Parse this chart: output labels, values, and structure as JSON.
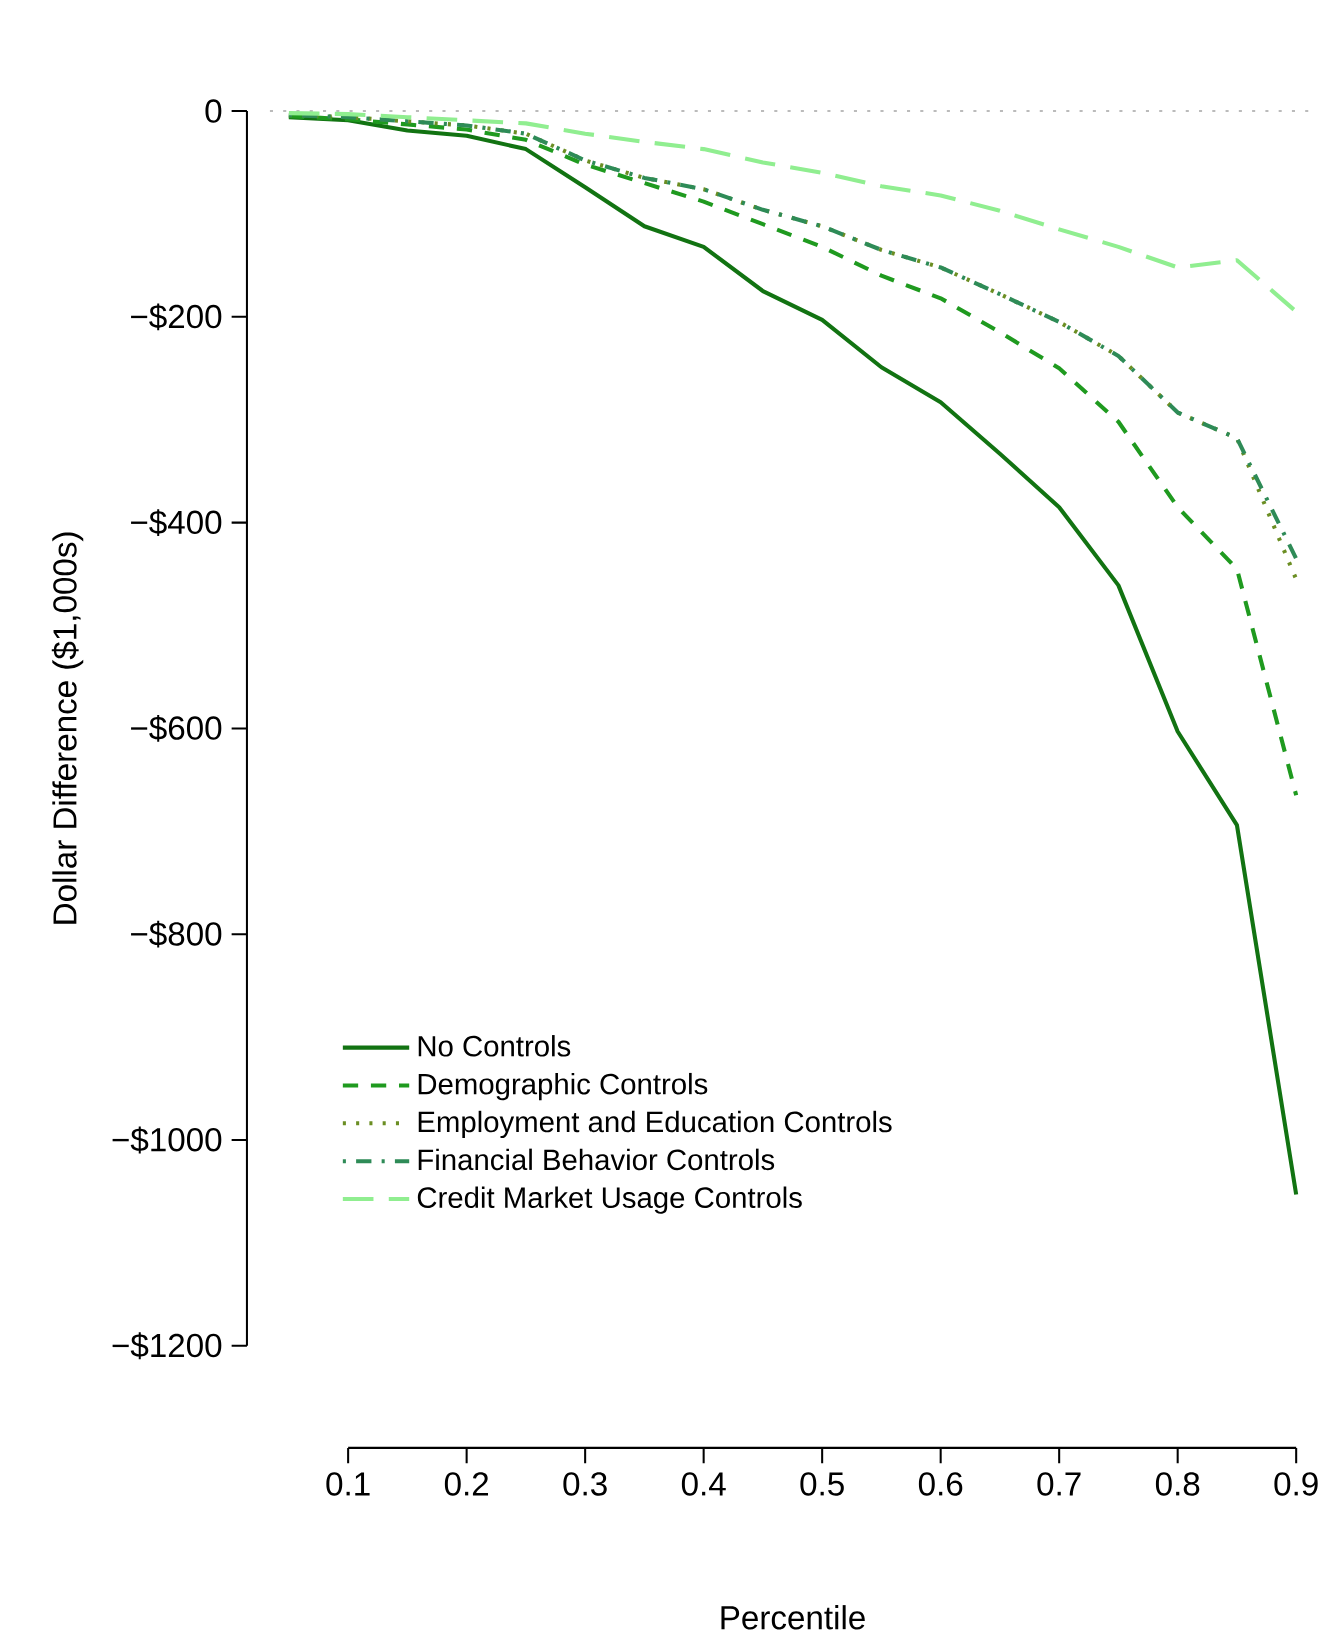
{
  "chart_data": {
    "type": "line",
    "xlabel": "Percentile",
    "ylabel": "Dollar Difference ($1,000s)",
    "x": [
      0.05,
      0.1,
      0.15,
      0.2,
      0.25,
      0.3,
      0.35,
      0.4,
      0.45,
      0.5,
      0.55,
      0.6,
      0.65,
      0.7,
      0.75,
      0.8,
      0.85,
      0.9
    ],
    "series": [
      {
        "name": "No Controls",
        "color": "#127312",
        "line_style": "solid",
        "values": [
          -6,
          -9,
          -19,
          -24,
          -37,
          -74,
          -112,
          -132,
          -175,
          -203,
          -249,
          -283,
          -333,
          -385,
          -461,
          -603,
          -694,
          -1053
        ]
      },
      {
        "name": "Demographic Controls",
        "color": "#1f9a1f",
        "line_style": "dashed",
        "values": [
          -5,
          -8,
          -13,
          -18,
          -28,
          -52,
          -70,
          -88,
          -110,
          -132,
          -160,
          -182,
          -215,
          -250,
          -302,
          -385,
          -445,
          -665
        ]
      },
      {
        "name": "Employment and Education Controls",
        "color": "#6b8e23",
        "line_style": "dotted",
        "values": [
          -4,
          -6,
          -10,
          -14,
          -22,
          -48,
          -65,
          -76,
          -96,
          -112,
          -135,
          -152,
          -178,
          -205,
          -238,
          -293,
          -318,
          -455
        ]
      },
      {
        "name": "Financial Behavior Controls",
        "color": "#2e8b57",
        "line_style": "dashdot",
        "values": [
          -4,
          -6,
          -10,
          -14,
          -22,
          -48,
          -65,
          -76,
          -96,
          -112,
          -135,
          -152,
          -178,
          -205,
          -238,
          -293,
          -318,
          -435
        ]
      },
      {
        "name": "Credit Market Usage Controls",
        "color": "#90ee90",
        "line_style": "longdash",
        "values": [
          -2,
          -3,
          -6,
          -9,
          -12,
          -22,
          -30,
          -37,
          -50,
          -60,
          -73,
          -82,
          -97,
          -115,
          -132,
          -152,
          -145,
          -195
        ]
      }
    ],
    "xlim": [
      0.034,
      0.916
    ],
    "ylim": [
      -1200,
      0
    ],
    "xticks": [
      0.1,
      0.2,
      0.3,
      0.4,
      0.5,
      0.6,
      0.7,
      0.8,
      0.9
    ],
    "yticks": [
      {
        "value": 0,
        "label": "0"
      },
      {
        "value": -200,
        "label": "−$200"
      },
      {
        "value": -400,
        "label": "−$400"
      },
      {
        "value": -600,
        "label": "−$600"
      },
      {
        "value": -800,
        "label": "−$800"
      },
      {
        "value": -1000,
        "label": "−$1000"
      },
      {
        "value": -1200,
        "label": "−$1200"
      }
    ],
    "ref_lines": [
      {
        "axis": "y",
        "value": 0,
        "color": "#bbbbbb",
        "line_style": "dotted"
      }
    ],
    "legend": "bottom left",
    "grid": false,
    "marker": "none"
  }
}
